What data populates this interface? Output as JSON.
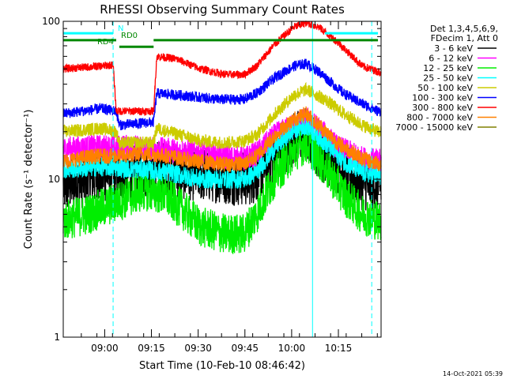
{
  "chart_data": {
    "type": "line",
    "title": "RHESSI Observing Summary Count Rates",
    "xlabel": "Start Time (10-Feb-10 08:46:42)",
    "ylabel": "Count Rate (s⁻¹ detector⁻¹)",
    "yscale": "log",
    "ylim": [
      1,
      100
    ],
    "xlim": [
      0,
      102
    ],
    "x_units": "minutes since 08:46:42",
    "y_ticks": [
      {
        "value": 1,
        "label": "1"
      },
      {
        "value": 10,
        "label": "10"
      },
      {
        "value": 100,
        "label": "100"
      }
    ],
    "x_ticks": [
      {
        "value": 13.3,
        "label": "09:00"
      },
      {
        "value": 28.3,
        "label": "09:15"
      },
      {
        "value": 43.3,
        "label": "09:30"
      },
      {
        "value": 58.3,
        "label": "09:45"
      },
      {
        "value": 73.3,
        "label": "10:00"
      },
      {
        "value": 88.3,
        "label": "10:15"
      }
    ],
    "legend": {
      "position": "right",
      "header": [
        "Det 1,3,4,5,6,9,",
        "FDecim 1, Att 0"
      ]
    },
    "series": [
      {
        "name": "3 - 6 keV",
        "color": "#000000",
        "noise": 1.5,
        "points": [
          [
            0,
            9
          ],
          [
            8,
            10
          ],
          [
            16,
            11
          ],
          [
            24,
            11
          ],
          [
            28,
            12
          ],
          [
            40,
            11
          ],
          [
            50,
            10.5
          ],
          [
            58,
            10
          ],
          [
            62,
            10.5
          ],
          [
            68,
            14
          ],
          [
            74,
            18
          ],
          [
            78,
            19.5
          ],
          [
            82,
            15
          ],
          [
            88,
            12
          ],
          [
            96,
            9.5
          ],
          [
            101,
            9
          ]
        ]
      },
      {
        "name": "6 - 12 keV",
        "color": "#ff00ff",
        "noise": 1.2,
        "points": [
          [
            0,
            15.5
          ],
          [
            10,
            16
          ],
          [
            20,
            16
          ],
          [
            30,
            15.5
          ],
          [
            40,
            15
          ],
          [
            50,
            14
          ],
          [
            58,
            13.5
          ],
          [
            62,
            14.5
          ],
          [
            68,
            19
          ],
          [
            74,
            22
          ],
          [
            78,
            24
          ],
          [
            82,
            21
          ],
          [
            88,
            16
          ],
          [
            96,
            13.5
          ],
          [
            101,
            13
          ]
        ]
      },
      {
        "name": "12 - 25 keV",
        "color": "#00ee00",
        "noise": 1.35,
        "points": [
          [
            0,
            5.5
          ],
          [
            8,
            6
          ],
          [
            16,
            7
          ],
          [
            26,
            8.5
          ],
          [
            32,
            8
          ],
          [
            38,
            6.5
          ],
          [
            44,
            5
          ],
          [
            52,
            4.5
          ],
          [
            58,
            4.5
          ],
          [
            62,
            6
          ],
          [
            68,
            10.5
          ],
          [
            74,
            15
          ],
          [
            78,
            17
          ],
          [
            84,
            12
          ],
          [
            90,
            8
          ],
          [
            96,
            6
          ],
          [
            101,
            5.5
          ]
        ]
      },
      {
        "name": "25 - 50 keV",
        "color": "#00ffff",
        "noise": 1.15,
        "points": [
          [
            0,
            11.5
          ],
          [
            12,
            12
          ],
          [
            26,
            11.5
          ],
          [
            34,
            11
          ],
          [
            44,
            10
          ],
          [
            52,
            10
          ],
          [
            58,
            10
          ],
          [
            62,
            11
          ],
          [
            68,
            16
          ],
          [
            74,
            20.5
          ],
          [
            78,
            22
          ],
          [
            84,
            17
          ],
          [
            90,
            13
          ],
          [
            96,
            11
          ],
          [
            101,
            10.5
          ]
        ]
      },
      {
        "name": "50 - 100 keV",
        "color": "#cccc00",
        "noise": 1.1,
        "points": [
          [
            0,
            20
          ],
          [
            12,
            21
          ],
          [
            17,
            20
          ],
          [
            18,
            17
          ],
          [
            29,
            17
          ],
          [
            30,
            21
          ],
          [
            38,
            19
          ],
          [
            44,
            17.5
          ],
          [
            52,
            17
          ],
          [
            58,
            17.5
          ],
          [
            62,
            19
          ],
          [
            68,
            26
          ],
          [
            74,
            34
          ],
          [
            78,
            37
          ],
          [
            84,
            32
          ],
          [
            90,
            26
          ],
          [
            96,
            22
          ],
          [
            101,
            20
          ]
        ]
      },
      {
        "name": "100 - 300 keV",
        "color": "#0000ff",
        "noise": 1.08,
        "points": [
          [
            0,
            26
          ],
          [
            12,
            28
          ],
          [
            17,
            27
          ],
          [
            18,
            22
          ],
          [
            29,
            23
          ],
          [
            30,
            35
          ],
          [
            38,
            34
          ],
          [
            44,
            33
          ],
          [
            50,
            32
          ],
          [
            58,
            32
          ],
          [
            62,
            35
          ],
          [
            68,
            44
          ],
          [
            74,
            52
          ],
          [
            78,
            54
          ],
          [
            82,
            48
          ],
          [
            90,
            35
          ],
          [
            96,
            30
          ],
          [
            101,
            27
          ]
        ]
      },
      {
        "name": "300 - 800 keV",
        "color": "#ff0000",
        "noise": 1.06,
        "points": [
          [
            0,
            50
          ],
          [
            12,
            52
          ],
          [
            16,
            53
          ],
          [
            17,
            27
          ],
          [
            29,
            27
          ],
          [
            30,
            60
          ],
          [
            36,
            58
          ],
          [
            44,
            50
          ],
          [
            52,
            46
          ],
          [
            58,
            46
          ],
          [
            62,
            52
          ],
          [
            68,
            72
          ],
          [
            74,
            92
          ],
          [
            78,
            98
          ],
          [
            82,
            92
          ],
          [
            88,
            74
          ],
          [
            96,
            52
          ],
          [
            101,
            48
          ]
        ]
      },
      {
        "name": "800 - 7000 keV",
        "color": "#ff8000",
        "noise": 1.12,
        "points": [
          [
            0,
            13
          ],
          [
            10,
            14
          ],
          [
            18,
            14
          ],
          [
            26,
            14.5
          ],
          [
            34,
            14
          ],
          [
            42,
            13
          ],
          [
            50,
            12.5
          ],
          [
            58,
            12.5
          ],
          [
            62,
            14
          ],
          [
            68,
            19
          ],
          [
            74,
            24
          ],
          [
            78,
            26
          ],
          [
            82,
            22
          ],
          [
            88,
            17
          ],
          [
            96,
            13.5
          ],
          [
            101,
            12.5
          ]
        ]
      },
      {
        "name": "7000 - 15000 keV",
        "color": "#808000",
        "noise": 1.0,
        "points": []
      }
    ],
    "annotations": [
      {
        "label": "N",
        "color": "#00ffff",
        "segments": [
          [
            0,
            16
          ],
          [
            84,
            101
          ]
        ],
        "y": 84
      },
      {
        "label": "RD0",
        "color": "#008800",
        "segments": [
          [
            0,
            17
          ],
          [
            29,
            101
          ]
        ],
        "y": 76
      },
      {
        "label": "RD4",
        "color": "#008800",
        "segments": [
          [
            18,
            29
          ]
        ],
        "y": 69
      }
    ],
    "vlines": [
      {
        "x": 16,
        "style": "dashed",
        "color": "#00ffff"
      },
      {
        "x": 80,
        "style": "solid",
        "color": "#00ffff"
      },
      {
        "x": 0,
        "style": "solid",
        "color": "#00ffff"
      },
      {
        "x": 99,
        "style": "dashed",
        "color": "#00ffff"
      }
    ]
  },
  "footer": {
    "timestamp": "14-Oct-2021 05:39"
  }
}
